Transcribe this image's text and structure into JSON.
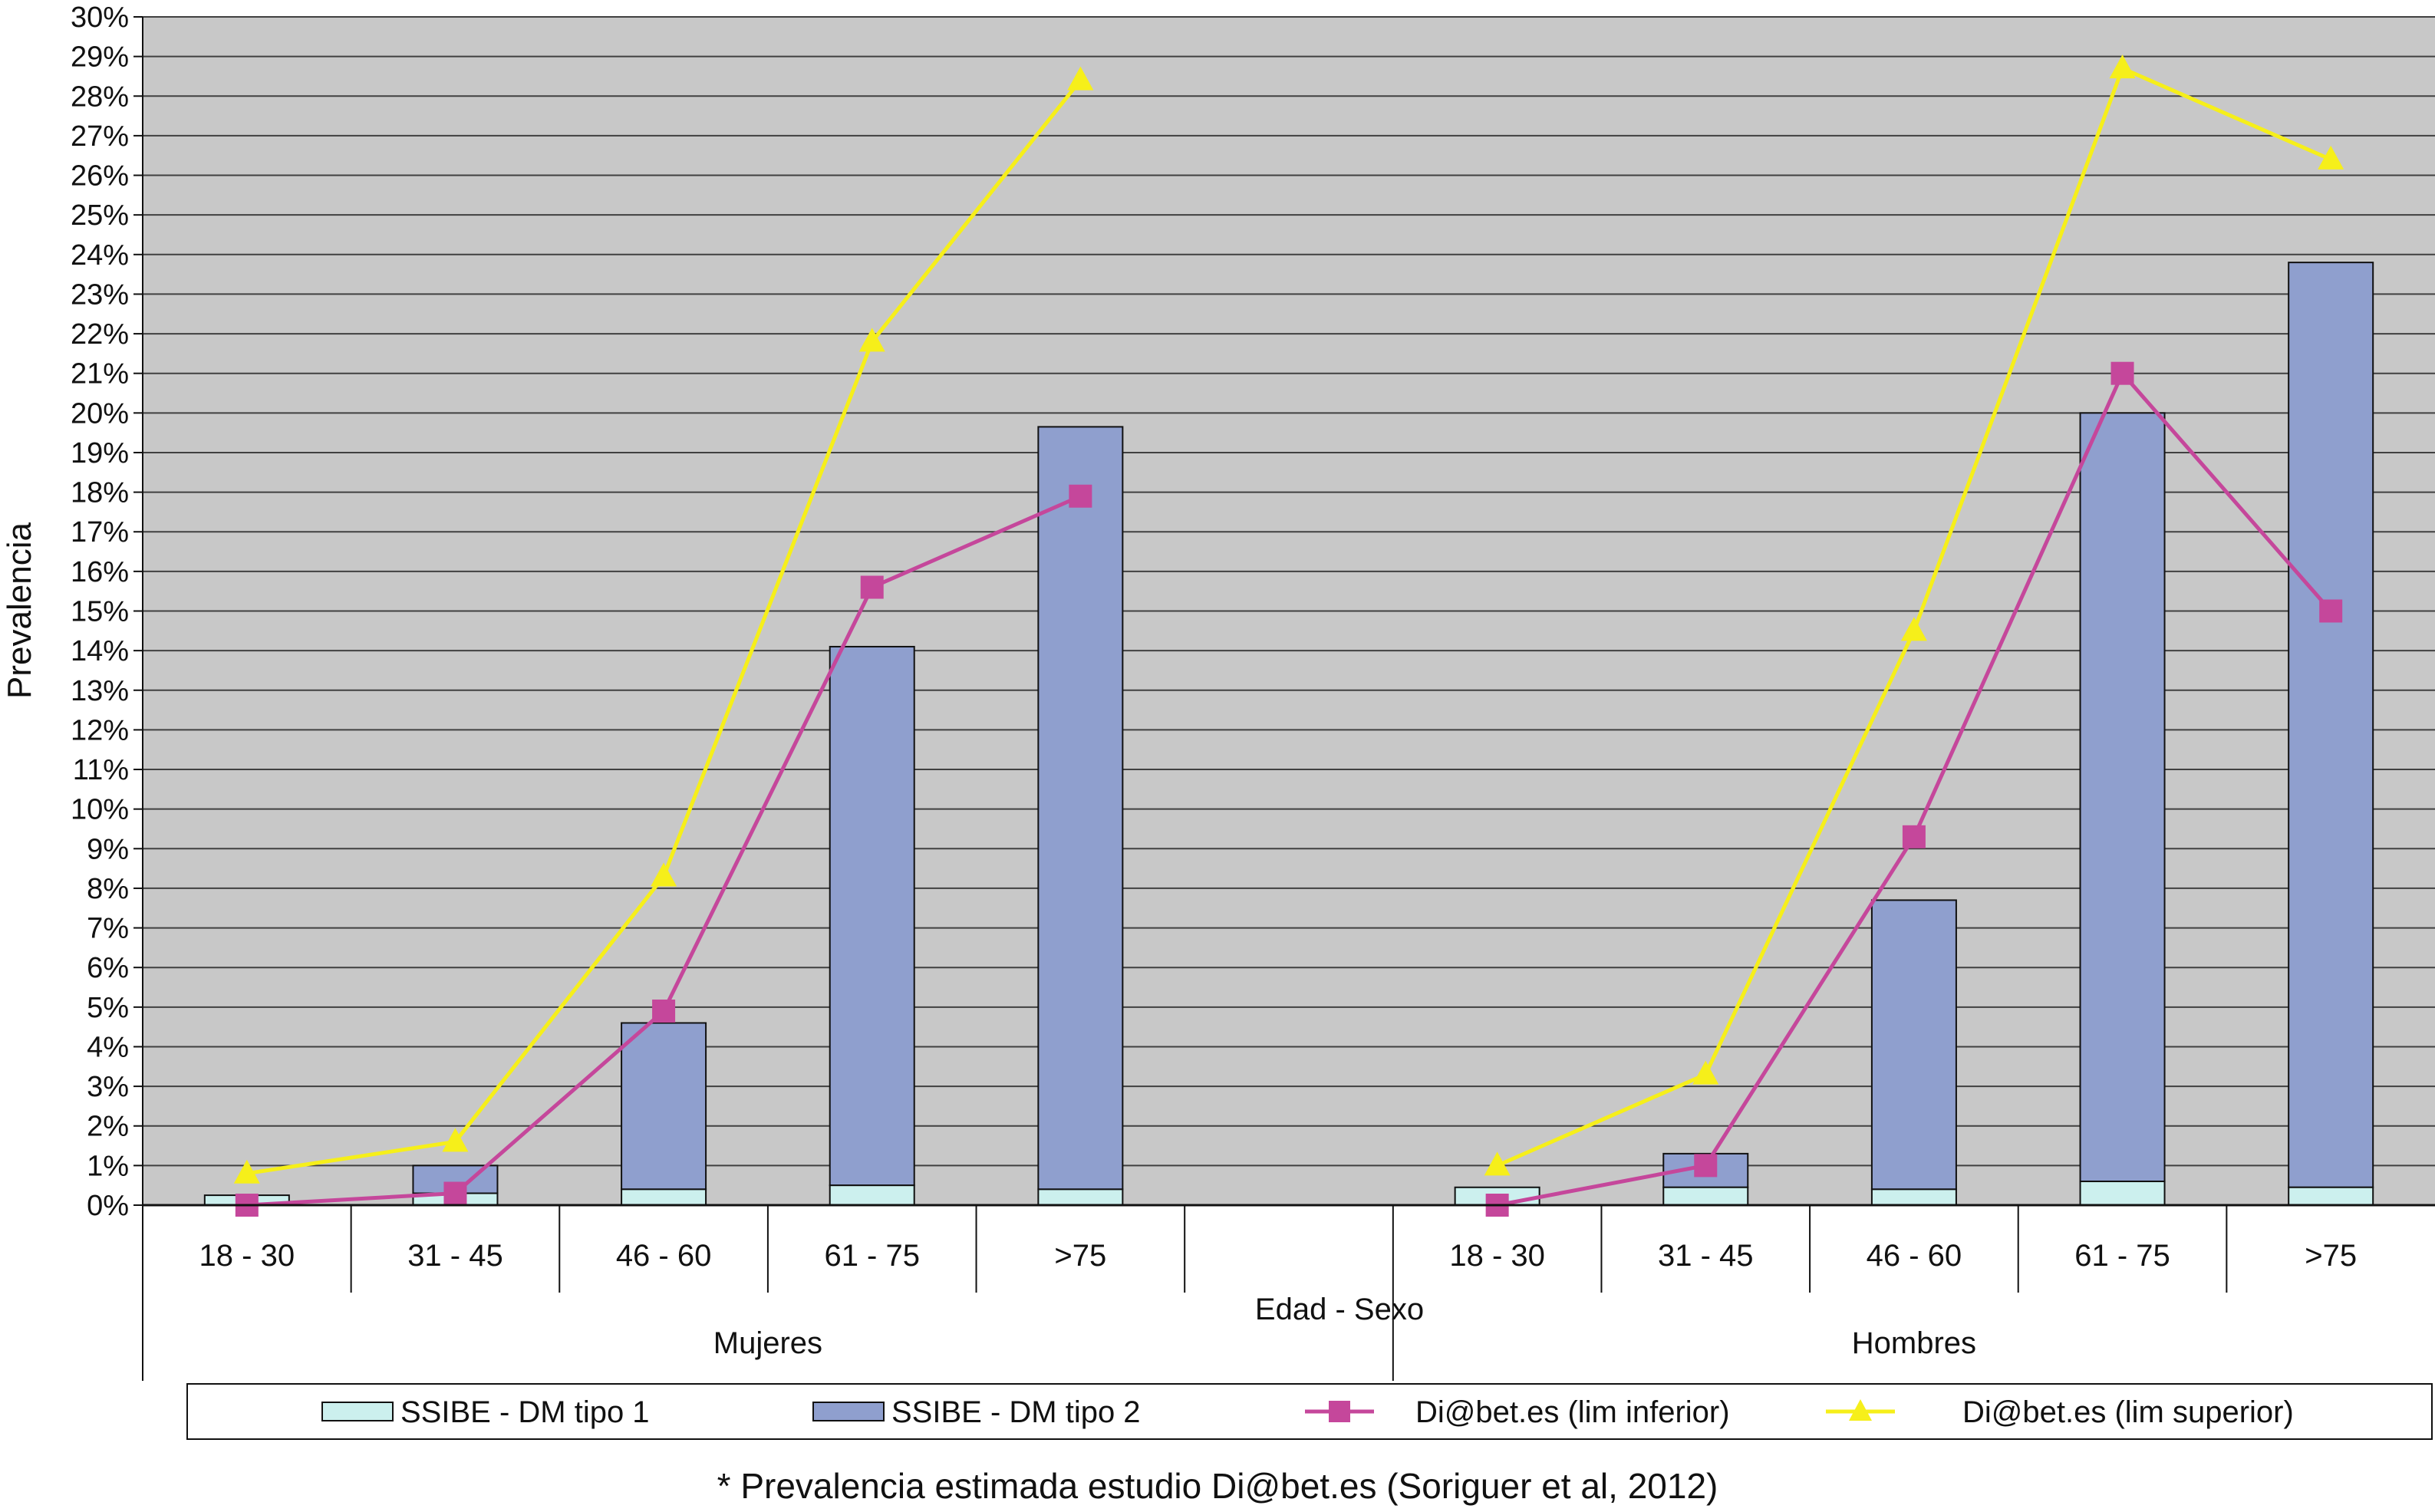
{
  "chart_data": {
    "type": "bar",
    "ylabel": "Prevalencia",
    "xlabel": "Edad - Sexo",
    "ylim": [
      0,
      30
    ],
    "y_unit": "%",
    "y_ticks": [
      "0%",
      "1%",
      "2%",
      "3%",
      "4%",
      "5%",
      "6%",
      "7%",
      "8%",
      "9%",
      "10%",
      "11%",
      "12%",
      "13%",
      "14%",
      "15%",
      "16%",
      "17%",
      "18%",
      "19%",
      "20%",
      "21%",
      "22%",
      "23%",
      "24%",
      "25%",
      "26%",
      "27%",
      "28%",
      "29%",
      "30%"
    ],
    "grid": true,
    "legend_position": "bottom",
    "groups": [
      {
        "name": "Mujeres",
        "categories": [
          "18 - 30",
          "31 - 45",
          "46 - 60",
          "61 - 75",
          ">75"
        ]
      },
      {
        "name": "Hombres",
        "categories": [
          "18 - 30",
          "31 - 45",
          "46 - 60",
          "61 - 75",
          ">75"
        ]
      }
    ],
    "series": [
      {
        "name": "SSIBE - DM tipo 1",
        "type": "stacked-bar",
        "color": "#ccf0ee",
        "values": [
          0.25,
          0.3,
          0.4,
          0.5,
          0.4,
          null,
          0.45,
          0.45,
          0.4,
          0.6,
          0.45
        ]
      },
      {
        "name": "SSIBE - DM tipo 2",
        "type": "stacked-bar",
        "color": "#8f9fce",
        "values": [
          0.0,
          0.7,
          4.2,
          13.6,
          19.25,
          null,
          0.0,
          0.85,
          7.3,
          19.4,
          23.35
        ]
      },
      {
        "name": "Di@bet.es (lim inferior)",
        "type": "line",
        "marker": "square",
        "color": "#c5479b",
        "values": [
          0.0,
          0.3,
          4.9,
          15.6,
          17.9,
          null,
          0.0,
          1.0,
          9.3,
          21.0,
          15.0
        ]
      },
      {
        "name": "Di@bet.es (lim superior)",
        "type": "line",
        "marker": "triangle",
        "color": "#f6ef1a",
        "values": [
          0.8,
          1.6,
          8.3,
          21.8,
          28.4,
          null,
          1.0,
          3.3,
          14.5,
          28.7,
          26.4
        ]
      }
    ],
    "colors": {
      "plot_background": "#c8c8c8",
      "gridline": "#404040"
    }
  },
  "footnote": "* Prevalencia estimada estudio Di@bet.es (Soriguer et al, 2012)"
}
